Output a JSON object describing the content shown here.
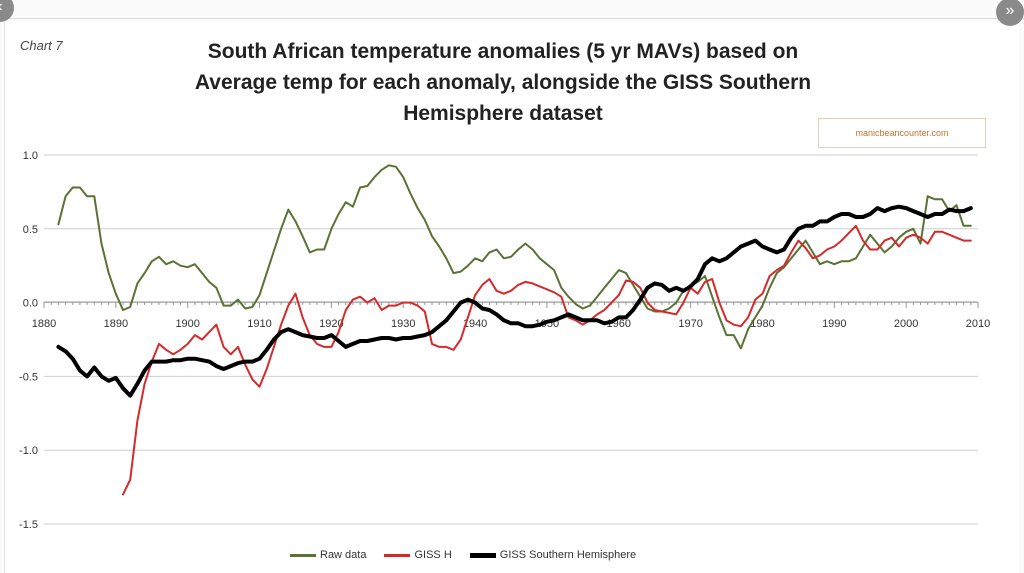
{
  "chart_number": "Chart 7",
  "watermark": "manicbeancounter.com",
  "nav": {
    "left_icon": "chevron-left-icon",
    "right_icon": "double-chevron-right-icon",
    "right_glyph": "»"
  },
  "colors": {
    "raw": "#5a7233",
    "giss_h": "#d42a2a",
    "giss_sh": "#000000"
  },
  "chart_data": {
    "type": "line",
    "title": "South African temperature anomalies (5 yr MAVs) based on Average temp for each anomaly, alongside the GISS Southern Hemisphere dataset",
    "title_lines": [
      "South African temperature anomalies (5 yr MAVs) based on",
      "Average temp for each anomaly, alongside the GISS Southern",
      "Hemisphere dataset"
    ],
    "xlabel": "",
    "ylabel": "",
    "xlim": [
      1880,
      2010
    ],
    "ylim": [
      -1.5,
      1.0
    ],
    "x_ticks": [
      1880,
      1890,
      1900,
      1910,
      1920,
      1930,
      1940,
      1950,
      1960,
      1970,
      1980,
      1990,
      2000,
      2010
    ],
    "y_ticks": [
      1.0,
      0.5,
      0.0,
      -0.5,
      -1.0,
      -1.5
    ],
    "y_tick_labels": [
      "1.0",
      "0.5",
      "0.0",
      "-0.5",
      "-1.0",
      "-1.5"
    ],
    "grid": true,
    "legend_position": "bottom",
    "series": [
      {
        "name": "Raw data",
        "color": "#5a7233",
        "x": [
          1882,
          1883,
          1884,
          1885,
          1886,
          1887,
          1888,
          1889,
          1890,
          1891,
          1892,
          1893,
          1894,
          1895,
          1896,
          1897,
          1898,
          1899,
          1900,
          1901,
          1902,
          1903,
          1904,
          1905,
          1906,
          1907,
          1908,
          1909,
          1910,
          1911,
          1912,
          1913,
          1914,
          1915,
          1916,
          1917,
          1918,
          1919,
          1920,
          1921,
          1922,
          1923,
          1924,
          1925,
          1926,
          1927,
          1928,
          1929,
          1930,
          1931,
          1932,
          1933,
          1934,
          1935,
          1936,
          1937,
          1938,
          1939,
          1940,
          1941,
          1942,
          1943,
          1944,
          1945,
          1946,
          1947,
          1948,
          1949,
          1950,
          1951,
          1952,
          1953,
          1954,
          1955,
          1956,
          1957,
          1958,
          1959,
          1960,
          1961,
          1962,
          1963,
          1964,
          1965,
          1966,
          1967,
          1968,
          1969,
          1970,
          1971,
          1972,
          1973,
          1974,
          1975,
          1976,
          1977,
          1978,
          1979,
          1980,
          1981,
          1982,
          1983,
          1984,
          1985,
          1986,
          1987,
          1988,
          1989,
          1990,
          1991,
          1992,
          1993,
          1994,
          1995,
          1996,
          1997,
          1998,
          1999,
          2000,
          2001,
          2002,
          2003,
          2004,
          2005,
          2006,
          2007,
          2008,
          2009
        ],
        "values": [
          0.53,
          0.72,
          0.78,
          0.78,
          0.72,
          0.72,
          0.4,
          0.2,
          0.06,
          -0.05,
          -0.03,
          0.13,
          0.2,
          0.28,
          0.31,
          0.26,
          0.28,
          0.25,
          0.24,
          0.26,
          0.2,
          0.14,
          0.1,
          -0.02,
          -0.02,
          0.02,
          -0.04,
          -0.03,
          0.05,
          0.2,
          0.35,
          0.5,
          0.63,
          0.55,
          0.45,
          0.34,
          0.36,
          0.36,
          0.5,
          0.6,
          0.68,
          0.65,
          0.78,
          0.79,
          0.85,
          0.9,
          0.93,
          0.92,
          0.85,
          0.74,
          0.64,
          0.56,
          0.45,
          0.38,
          0.3,
          0.2,
          0.21,
          0.25,
          0.3,
          0.28,
          0.34,
          0.36,
          0.3,
          0.31,
          0.36,
          0.4,
          0.36,
          0.3,
          0.26,
          0.22,
          0.1,
          0.04,
          -0.01,
          -0.04,
          -0.02,
          0.04,
          0.1,
          0.16,
          0.22,
          0.2,
          0.12,
          0.04,
          -0.04,
          -0.06,
          -0.06,
          -0.04,
          0.0,
          0.08,
          0.12,
          0.14,
          0.18,
          0.04,
          -0.1,
          -0.22,
          -0.22,
          -0.31,
          -0.18,
          -0.1,
          -0.02,
          0.1,
          0.2,
          0.24,
          0.3,
          0.36,
          0.42,
          0.34,
          0.26,
          0.28,
          0.26,
          0.28,
          0.28,
          0.3,
          0.38,
          0.46,
          0.4,
          0.34,
          0.38,
          0.44,
          0.48,
          0.5,
          0.4,
          0.72,
          0.7,
          0.7,
          0.62,
          0.66,
          0.52,
          0.52
        ]
      },
      {
        "name": "GISS H",
        "color": "#d42a2a",
        "x": [
          1891,
          1892,
          1893,
          1894,
          1895,
          1896,
          1897,
          1898,
          1899,
          1900,
          1901,
          1902,
          1903,
          1904,
          1905,
          1906,
          1907,
          1908,
          1909,
          1910,
          1911,
          1912,
          1913,
          1914,
          1915,
          1916,
          1917,
          1918,
          1919,
          1920,
          1921,
          1922,
          1923,
          1924,
          1925,
          1926,
          1927,
          1928,
          1929,
          1930,
          1931,
          1932,
          1933,
          1934,
          1935,
          1936,
          1937,
          1938,
          1939,
          1940,
          1941,
          1942,
          1943,
          1944,
          1945,
          1946,
          1947,
          1948,
          1949,
          1950,
          1951,
          1952,
          1953,
          1954,
          1955,
          1956,
          1957,
          1958,
          1959,
          1960,
          1961,
          1962,
          1963,
          1964,
          1965,
          1966,
          1967,
          1968,
          1969,
          1970,
          1971,
          1972,
          1973,
          1974,
          1975,
          1976,
          1977,
          1978,
          1979,
          1980,
          1981,
          1982,
          1983,
          1984,
          1985,
          1986,
          1987,
          1988,
          1989,
          1990,
          1991,
          1992,
          1993,
          1994,
          1995,
          1996,
          1997,
          1998,
          1999,
          2000,
          2001,
          2002,
          2003,
          2004,
          2005,
          2006,
          2007,
          2008,
          2009
        ],
        "values": [
          -1.3,
          -1.2,
          -0.8,
          -0.55,
          -0.4,
          -0.28,
          -0.32,
          -0.35,
          -0.32,
          -0.28,
          -0.22,
          -0.25,
          -0.2,
          -0.15,
          -0.3,
          -0.35,
          -0.3,
          -0.42,
          -0.52,
          -0.57,
          -0.45,
          -0.3,
          -0.15,
          -0.02,
          0.06,
          -0.1,
          -0.22,
          -0.28,
          -0.3,
          -0.3,
          -0.2,
          -0.05,
          0.02,
          0.04,
          0.0,
          0.03,
          -0.05,
          -0.02,
          -0.02,
          0.0,
          0.0,
          -0.02,
          -0.06,
          -0.28,
          -0.3,
          -0.3,
          -0.32,
          -0.25,
          -0.1,
          0.05,
          0.12,
          0.16,
          0.08,
          0.06,
          0.08,
          0.12,
          0.14,
          0.13,
          0.11,
          0.09,
          0.07,
          0.04,
          -0.1,
          -0.12,
          -0.15,
          -0.12,
          -0.08,
          -0.05,
          0.0,
          0.05,
          0.15,
          0.14,
          0.1,
          0.0,
          -0.05,
          -0.06,
          -0.07,
          -0.08,
          0.0,
          0.1,
          0.06,
          0.14,
          0.16,
          0.0,
          -0.12,
          -0.15,
          -0.16,
          -0.1,
          0.02,
          0.06,
          0.18,
          0.22,
          0.25,
          0.34,
          0.42,
          0.37,
          0.3,
          0.32,
          0.36,
          0.38,
          0.42,
          0.47,
          0.52,
          0.42,
          0.36,
          0.36,
          0.42,
          0.44,
          0.38,
          0.44,
          0.46,
          0.44,
          0.4,
          0.48,
          0.48,
          0.46,
          0.44,
          0.42,
          0.42
        ]
      },
      {
        "name": "GISS Southern Hemisphere",
        "color": "#000000",
        "x": [
          1882,
          1883,
          1884,
          1885,
          1886,
          1887,
          1888,
          1889,
          1890,
          1891,
          1892,
          1893,
          1894,
          1895,
          1896,
          1897,
          1898,
          1899,
          1900,
          1901,
          1902,
          1903,
          1904,
          1905,
          1906,
          1907,
          1908,
          1909,
          1910,
          1911,
          1912,
          1913,
          1914,
          1915,
          1916,
          1917,
          1918,
          1919,
          1920,
          1921,
          1922,
          1923,
          1924,
          1925,
          1926,
          1927,
          1928,
          1929,
          1930,
          1931,
          1932,
          1933,
          1934,
          1935,
          1936,
          1937,
          1938,
          1939,
          1940,
          1941,
          1942,
          1943,
          1944,
          1945,
          1946,
          1947,
          1948,
          1949,
          1950,
          1951,
          1952,
          1953,
          1954,
          1955,
          1956,
          1957,
          1958,
          1959,
          1960,
          1961,
          1962,
          1963,
          1964,
          1965,
          1966,
          1967,
          1968,
          1969,
          1970,
          1971,
          1972,
          1973,
          1974,
          1975,
          1976,
          1977,
          1978,
          1979,
          1980,
          1981,
          1982,
          1983,
          1984,
          1985,
          1986,
          1987,
          1988,
          1989,
          1990,
          1991,
          1992,
          1993,
          1994,
          1995,
          1996,
          1997,
          1998,
          1999,
          2000,
          2001,
          2002,
          2003,
          2004,
          2005,
          2006,
          2007,
          2008,
          2009
        ],
        "values": [
          -0.3,
          -0.33,
          -0.38,
          -0.46,
          -0.5,
          -0.44,
          -0.5,
          -0.53,
          -0.51,
          -0.58,
          -0.63,
          -0.55,
          -0.46,
          -0.4,
          -0.4,
          -0.4,
          -0.39,
          -0.39,
          -0.38,
          -0.38,
          -0.39,
          -0.4,
          -0.43,
          -0.45,
          -0.43,
          -0.41,
          -0.4,
          -0.4,
          -0.38,
          -0.32,
          -0.25,
          -0.2,
          -0.18,
          -0.2,
          -0.22,
          -0.23,
          -0.24,
          -0.24,
          -0.22,
          -0.26,
          -0.3,
          -0.28,
          -0.26,
          -0.26,
          -0.25,
          -0.24,
          -0.24,
          -0.25,
          -0.24,
          -0.24,
          -0.23,
          -0.22,
          -0.2,
          -0.16,
          -0.12,
          -0.06,
          0.0,
          0.02,
          0.0,
          -0.04,
          -0.05,
          -0.08,
          -0.12,
          -0.14,
          -0.14,
          -0.16,
          -0.16,
          -0.15,
          -0.13,
          -0.12,
          -0.1,
          -0.08,
          -0.1,
          -0.12,
          -0.12,
          -0.12,
          -0.14,
          -0.13,
          -0.1,
          -0.1,
          -0.05,
          0.02,
          0.1,
          0.13,
          0.12,
          0.08,
          0.1,
          0.08,
          0.11,
          0.16,
          0.26,
          0.3,
          0.28,
          0.3,
          0.34,
          0.38,
          0.4,
          0.42,
          0.38,
          0.36,
          0.34,
          0.36,
          0.44,
          0.5,
          0.52,
          0.52,
          0.55,
          0.55,
          0.58,
          0.6,
          0.6,
          0.58,
          0.58,
          0.6,
          0.64,
          0.62,
          0.64,
          0.65,
          0.64,
          0.62,
          0.6,
          0.58,
          0.6,
          0.6,
          0.63,
          0.62,
          0.62,
          0.64
        ]
      }
    ]
  }
}
